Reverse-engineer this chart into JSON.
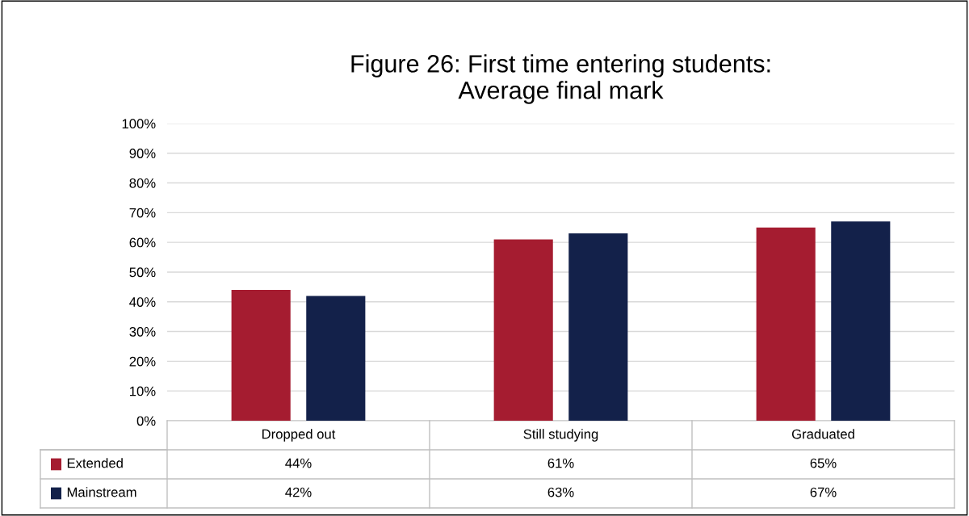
{
  "chart_data": {
    "type": "bar",
    "title": "Figure 26: First time entering students:\nAverage final mark",
    "categories": [
      "Dropped out",
      "Still studying",
      "Graduated"
    ],
    "series": [
      {
        "name": "Extended",
        "color": "#a51c30",
        "values": [
          44,
          61,
          65
        ],
        "value_labels": [
          "44%",
          "61%",
          "65%"
        ]
      },
      {
        "name": "Mainstream",
        "color": "#13214a",
        "values": [
          42,
          63,
          67
        ],
        "value_labels": [
          "42%",
          "63%",
          "67%"
        ]
      }
    ],
    "ylim": [
      0,
      100
    ],
    "yticks": [
      {
        "value": 0,
        "label": "0%"
      },
      {
        "value": 10,
        "label": "10%"
      },
      {
        "value": 20,
        "label": "20%"
      },
      {
        "value": 30,
        "label": "30%"
      },
      {
        "value": 40,
        "label": "40%"
      },
      {
        "value": 50,
        "label": "50%"
      },
      {
        "value": 60,
        "label": "60%"
      },
      {
        "value": 70,
        "label": "70%"
      },
      {
        "value": 80,
        "label": "80%"
      },
      {
        "value": 90,
        "label": "90%"
      },
      {
        "value": 100,
        "label": "100%"
      }
    ],
    "grid": "y",
    "legend": "bottom"
  }
}
